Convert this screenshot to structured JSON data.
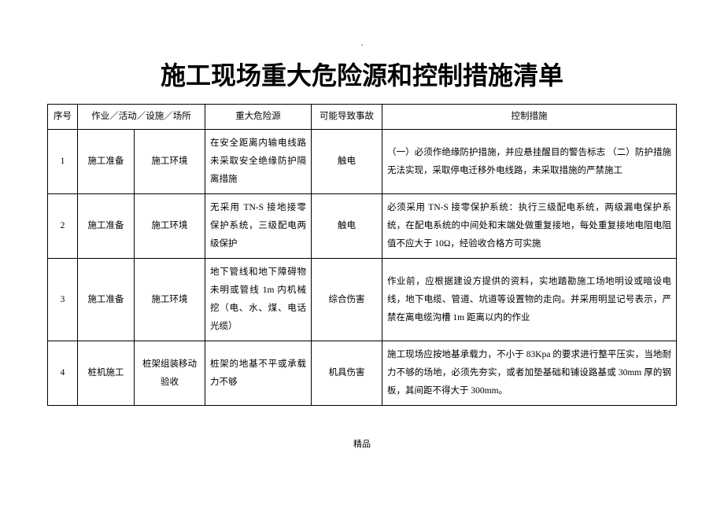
{
  "title": "施工现场重大危险源和控制措施清单",
  "footer": "精品",
  "headers": {
    "h0": "序号",
    "h1": "作业／活动／设施／场所",
    "h2": "重大危险源",
    "h3": "可能导致事故",
    "h4": "控制措施"
  },
  "rows": [
    {
      "no": "1",
      "c1": "施工准备",
      "c2": "施工环境",
      "c3": "在安全距离内输电线路未采取安全绝缘防护隔离措施",
      "c4": "触电",
      "c5": "（一）必须作绝缘防护措施，并应悬挂醒目的警告标志\n（二）防护措施无法实现，采取停电迁移外电线路，未采取措施的严禁施工"
    },
    {
      "no": "2",
      "c1": "施工准备",
      "c2": "施工环境",
      "c3": "无采用 TN-S 接地接零保护系统，三级配电两级保护",
      "c4": "触电",
      "c5": "必须采用 TN-S 接零保护系统：执行三级配电系统，两级漏电保护系统，在配电系统的中间处和末端处做重复接地，每处重复接地电阻电阻值不应大于 10Ω，经验收合格方可实施"
    },
    {
      "no": "3",
      "c1": "施工准备",
      "c2": "施工环境",
      "c3": "地下管线和地下障碍物未明或管线 1m 内机械挖（电、水、煤、电话光缆）",
      "c4": "综合伤害",
      "c5": "作业前，应根据建设方提供的资料，实地踏勘施工场地明设或暗设电线，地下电缆、管道、坑道等设置物的走向。并采用明显记号表示，严禁在离电缆沟槽 1m 距离以内的作业"
    },
    {
      "no": "4",
      "c1": "桩机施工",
      "c2": "桩架组装移动验收",
      "c3": "桩架的地基不平或承载力不够",
      "c4": "机具伤害",
      "c5": "施工现场应按地基承载力，不小于 83Kpa 的要求进行整平压实，当地耐力不够的场地，必须先夯实，或者加垫基础和铺设路基或 30mm 厚的钢板，其间距不得大于 300mm。"
    }
  ]
}
